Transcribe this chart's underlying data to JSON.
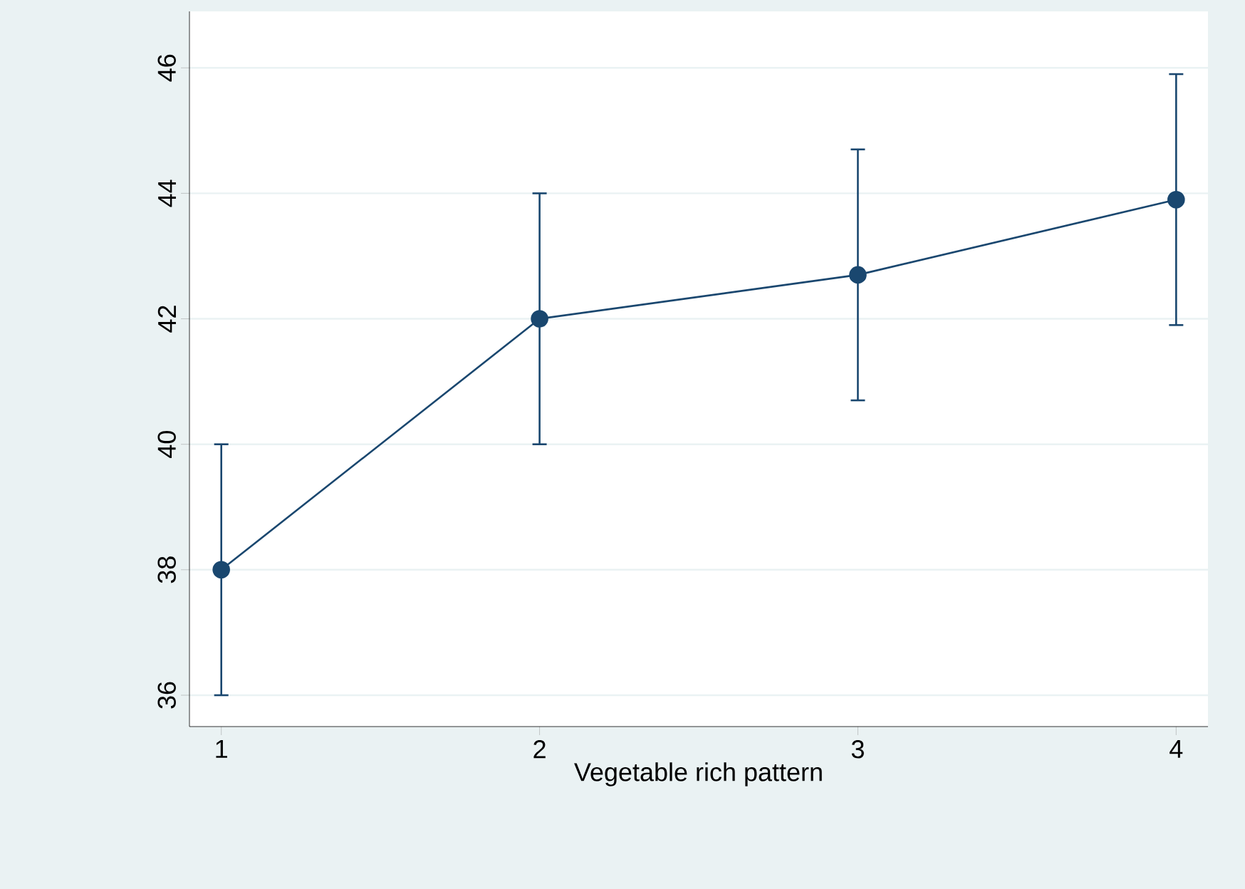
{
  "chart_data": {
    "type": "line",
    "xlabel": "Vegetable rich pattern",
    "x": [
      1,
      2,
      3,
      4
    ],
    "series": [
      {
        "color": "#1a476f",
        "values": [
          38.0,
          42.0,
          42.7,
          43.9
        ],
        "errors": [
          2,
          2,
          2,
          2
        ]
      }
    ],
    "xlim": [
      0.9,
      4.1
    ],
    "ylim": [
      35.5,
      46.9
    ],
    "xticks": [
      1,
      2,
      3,
      4
    ],
    "yticks": [
      36,
      38,
      40,
      42,
      44,
      46
    ],
    "grid": "y",
    "marker": "circle",
    "line_style": "solid"
  }
}
